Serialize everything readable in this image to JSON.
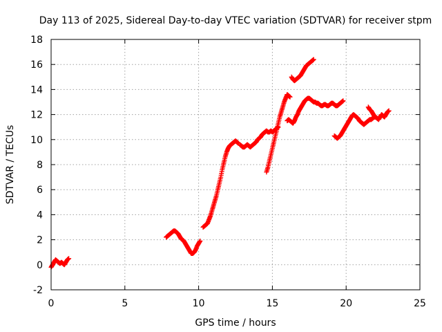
{
  "chart_data": {
    "type": "scatter",
    "title": "Day 113 of 2025, Sidereal Day-to-day VTEC variation (SDTVAR) for receiver stpm",
    "xlabel": "GPS time / hours",
    "ylabel": "SDTVAR / TECUs",
    "xlim": [
      0,
      25
    ],
    "ylim": [
      -2,
      18
    ],
    "xticks": [
      0,
      5,
      10,
      15,
      20,
      25
    ],
    "yticks": [
      -2,
      0,
      2,
      4,
      6,
      8,
      10,
      12,
      14,
      16,
      18
    ],
    "grid": true,
    "marker": "plus",
    "color": "#ff0000",
    "segments": [
      {
        "x": [
          0.0,
          0.1,
          0.2,
          0.3,
          0.4,
          0.5,
          0.6,
          0.7,
          0.8,
          0.9,
          1.0,
          1.1,
          1.2
        ],
        "y": [
          -0.2,
          0.0,
          0.2,
          0.4,
          0.3,
          0.2,
          0.1,
          0.2,
          0.1,
          0.0,
          0.2,
          0.4,
          0.5
        ]
      },
      {
        "x": [
          7.8,
          7.9,
          8.0,
          8.1,
          8.2,
          8.3,
          8.4,
          8.5,
          8.6,
          8.7,
          8.8,
          8.9,
          9.0,
          9.1,
          9.2,
          9.3,
          9.4,
          9.5,
          9.6,
          9.7,
          9.8,
          9.9,
          10.0,
          10.1
        ],
        "y": [
          2.2,
          2.3,
          2.4,
          2.5,
          2.6,
          2.7,
          2.7,
          2.6,
          2.5,
          2.3,
          2.1,
          2.0,
          1.9,
          1.7,
          1.5,
          1.3,
          1.1,
          0.9,
          0.9,
          1.0,
          1.2,
          1.5,
          1.7,
          1.9
        ]
      },
      {
        "x": [
          10.3,
          10.4,
          10.5,
          10.6,
          10.7,
          10.8,
          10.9,
          11.0,
          11.1,
          11.2,
          11.3,
          11.4,
          11.5,
          11.6,
          11.7,
          11.8,
          11.9,
          12.0,
          12.1,
          12.2,
          12.3,
          12.4,
          12.5,
          12.6,
          12.7
        ],
        "y": [
          3.0,
          3.1,
          3.2,
          3.3,
          3.6,
          3.9,
          4.3,
          4.7,
          5.1,
          5.5,
          6.0,
          6.5,
          7.0,
          7.6,
          8.1,
          8.6,
          9.0,
          9.3,
          9.5,
          9.6,
          9.7,
          9.8,
          9.9,
          9.8,
          9.7
        ]
      },
      {
        "x": [
          12.8,
          12.9,
          13.0,
          13.1,
          13.2,
          13.3,
          13.4,
          13.5,
          13.6,
          13.7,
          13.8,
          13.9,
          14.0,
          14.1,
          14.2,
          14.3,
          14.4,
          14.5,
          14.6,
          14.7,
          14.8,
          14.9,
          15.0,
          15.1,
          15.2,
          15.3,
          15.4
        ],
        "y": [
          9.6,
          9.5,
          9.4,
          9.4,
          9.5,
          9.6,
          9.5,
          9.4,
          9.5,
          9.6,
          9.7,
          9.8,
          10.0,
          10.1,
          10.2,
          10.4,
          10.5,
          10.6,
          10.7,
          10.6,
          10.6,
          10.7,
          10.6,
          10.7,
          10.8,
          10.9,
          11.0
        ]
      },
      {
        "x": [
          14.6,
          14.7,
          14.8,
          14.9,
          15.0,
          15.1,
          15.2,
          15.3,
          15.4,
          15.5,
          15.6,
          15.7,
          15.8,
          15.9,
          16.0,
          16.1,
          16.2
        ],
        "y": [
          7.4,
          7.8,
          8.3,
          8.8,
          9.3,
          9.8,
          10.3,
          10.8,
          11.3,
          11.8,
          12.2,
          12.6,
          13.0,
          13.3,
          13.6,
          13.5,
          13.4
        ]
      },
      {
        "x": [
          16.0,
          16.1,
          16.2,
          16.3,
          16.4,
          16.5,
          16.6,
          16.7,
          16.8,
          16.9,
          17.0,
          17.1,
          17.2,
          17.3,
          17.4,
          17.5,
          17.6,
          17.7,
          17.8,
          17.9,
          18.0,
          18.1,
          18.2,
          18.3,
          18.4,
          18.5,
          18.6,
          18.7,
          18.8,
          18.9,
          19.0,
          19.1,
          19.2,
          19.3,
          19.4,
          19.5,
          19.6,
          19.7,
          19.8
        ],
        "y": [
          11.5,
          11.6,
          11.5,
          11.4,
          11.3,
          11.5,
          11.8,
          12.0,
          12.3,
          12.5,
          12.7,
          12.9,
          13.1,
          13.2,
          13.3,
          13.3,
          13.2,
          13.1,
          13.0,
          13.0,
          12.9,
          12.9,
          12.8,
          12.7,
          12.7,
          12.8,
          12.8,
          12.7,
          12.7,
          12.8,
          12.9,
          12.9,
          12.8,
          12.7,
          12.7,
          12.8,
          12.9,
          13.0,
          13.1
        ]
      },
      {
        "x": [
          16.3,
          16.4,
          16.5,
          16.6,
          16.7,
          16.8,
          16.9,
          17.0,
          17.1,
          17.2,
          17.3,
          17.4,
          17.5,
          17.6,
          17.7,
          17.8
        ],
        "y": [
          15.0,
          14.8,
          14.7,
          14.8,
          14.9,
          15.0,
          15.1,
          15.3,
          15.5,
          15.7,
          15.9,
          16.0,
          16.1,
          16.2,
          16.3,
          16.4
        ]
      },
      {
        "x": [
          19.2,
          19.3,
          19.4,
          19.5,
          19.6,
          19.7,
          19.8,
          19.9,
          20.0,
          20.1,
          20.2,
          20.3,
          20.4,
          20.5,
          20.6,
          20.7,
          20.8,
          20.9,
          21.0,
          21.1,
          21.2,
          21.3,
          21.4,
          21.5,
          21.6,
          21.7,
          21.8,
          21.9,
          22.0
        ],
        "y": [
          10.3,
          10.2,
          10.1,
          10.2,
          10.3,
          10.5,
          10.7,
          10.9,
          11.1,
          11.3,
          11.5,
          11.7,
          11.9,
          12.0,
          11.9,
          11.8,
          11.7,
          11.5,
          11.4,
          11.3,
          11.2,
          11.3,
          11.4,
          11.5,
          11.6,
          11.6,
          11.7,
          11.8,
          11.8
        ]
      },
      {
        "x": [
          21.5,
          21.6,
          21.7,
          21.8,
          21.9,
          22.0,
          22.1,
          22.2,
          22.3,
          22.4,
          22.5,
          22.6,
          22.7,
          22.8,
          22.9
        ],
        "y": [
          12.6,
          12.4,
          12.3,
          12.1,
          11.9,
          11.8,
          11.7,
          11.6,
          11.8,
          12.0,
          11.9,
          11.8,
          12.0,
          12.2,
          12.3
        ]
      }
    ]
  }
}
